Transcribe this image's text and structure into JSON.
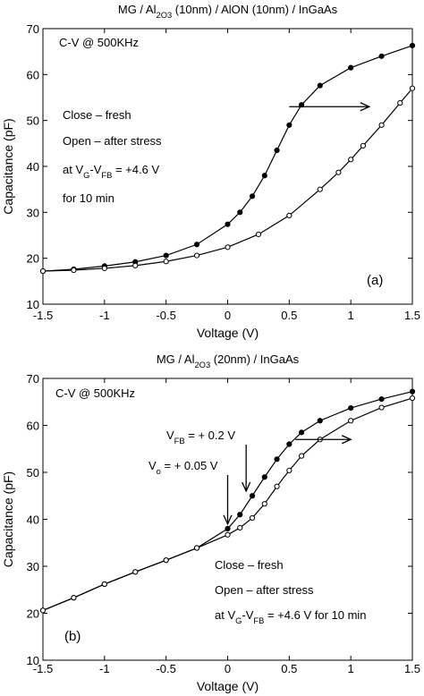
{
  "colors": {
    "axis": "#000000",
    "line": "#000000",
    "closed_marker": "#000000",
    "open_marker": "#ffffff"
  },
  "chart_data": [
    {
      "panel_label": "(a)",
      "type": "line",
      "title": {
        "parts": [
          "MG / Al",
          "2",
          "O",
          "3",
          " (10nm) / AlON (10nm) / InGaAs"
        ]
      },
      "xlabel": "Voltage (V)",
      "ylabel": "Capacitance (pF)",
      "xlim": [
        -1.5,
        1.5
      ],
      "ylim": [
        10,
        70
      ],
      "xticks": [
        -1.5,
        -1,
        -0.5,
        0,
        0.5,
        1,
        1.5
      ],
      "xtick_labels": [
        "-1.5",
        "-1",
        "-0.5",
        "0",
        "0.5",
        "1",
        "1.5"
      ],
      "yticks": [
        10,
        20,
        30,
        40,
        50,
        60,
        70
      ],
      "ytick_labels": [
        "10",
        "20",
        "30",
        "40",
        "50",
        "60",
        "70"
      ],
      "grid": false,
      "annotation_lines": [
        {
          "parts": [
            "C-V @  500KHz"
          ]
        },
        {
          "parts": [
            "Close – fresh"
          ]
        },
        {
          "parts": [
            "Open – after stress"
          ]
        },
        {
          "parts": [
            "at  V",
            "G",
            "-V",
            "FB",
            " = +4.6 V"
          ]
        },
        {
          "parts": [
            "for  10 min"
          ]
        }
      ],
      "arrows": [
        {
          "from": [
            0.5,
            53
          ],
          "to": [
            1.15,
            53
          ]
        }
      ],
      "series": [
        {
          "marker": "closed",
          "x": [
            -1.5,
            -1.25,
            -1.0,
            -0.75,
            -0.5,
            -0.25,
            0.0,
            0.1,
            0.2,
            0.3,
            0.4,
            0.5,
            0.6,
            0.75,
            1.0,
            1.25,
            1.5
          ],
          "y": [
            17.2,
            17.6,
            18.3,
            19.2,
            20.6,
            23.0,
            27.4,
            30.0,
            33.5,
            38.0,
            43.5,
            49.0,
            53.4,
            57.6,
            61.5,
            64.0,
            66.3
          ]
        },
        {
          "marker": "open",
          "x": [
            -1.5,
            -1.25,
            -1.0,
            -0.75,
            -0.5,
            -0.25,
            0.0,
            0.25,
            0.5,
            0.75,
            0.9,
            1.0,
            1.1,
            1.25,
            1.4,
            1.5
          ],
          "y": [
            17.2,
            17.4,
            17.8,
            18.4,
            19.3,
            20.6,
            22.4,
            25.2,
            29.3,
            35.0,
            38.7,
            41.5,
            44.5,
            49.0,
            53.8,
            57.0
          ]
        }
      ]
    },
    {
      "panel_label": "(b)",
      "type": "line",
      "title": {
        "parts": [
          "MG / Al",
          "2",
          "O",
          "3",
          " (20nm) / InGaAs"
        ]
      },
      "xlabel": "Voltage (V)",
      "ylabel": "Capacitance (pF)",
      "xlim": [
        -1.5,
        1.5
      ],
      "ylim": [
        10,
        70
      ],
      "xticks": [
        -1.5,
        -1,
        -0.5,
        0,
        0.5,
        1,
        1.5
      ],
      "xtick_labels": [
        "-1.5",
        "-1",
        "-0.5",
        "0",
        "0.5",
        "1",
        "1.5"
      ],
      "yticks": [
        10,
        20,
        30,
        40,
        50,
        60,
        70
      ],
      "ytick_labels": [
        "10",
        "20",
        "30",
        "40",
        "50",
        "60",
        "70"
      ],
      "grid": false,
      "annotation_lines": [
        {
          "parts": [
            "C-V @  500KHz"
          ]
        },
        {
          "parts": [
            "Close – fresh"
          ]
        },
        {
          "parts": [
            "Open – after stress"
          ]
        },
        {
          "parts": [
            "at  V",
            "G",
            "-V",
            "FB",
            " = +4.6 V  for  10 min"
          ]
        }
      ],
      "callouts": [
        {
          "parts": [
            "V",
            "FB",
            " = + 0.2 V"
          ],
          "point": [
            0.15,
            46
          ]
        },
        {
          "parts": [
            "V",
            "o",
            " = + 0.05 V"
          ],
          "point": [
            0.0,
            39
          ]
        }
      ],
      "arrows": [
        {
          "from": [
            0.55,
            57
          ],
          "to": [
            1.0,
            57
          ]
        }
      ],
      "series": [
        {
          "marker": "closed",
          "x": [
            -1.5,
            -1.25,
            -1.0,
            -0.75,
            -0.5,
            -0.25,
            0.0,
            0.1,
            0.2,
            0.3,
            0.4,
            0.5,
            0.6,
            0.75,
            1.0,
            1.25,
            1.5
          ],
          "y": [
            20.6,
            23.3,
            26.2,
            28.8,
            31.3,
            33.9,
            38.0,
            41.0,
            45.0,
            49.0,
            52.8,
            56.0,
            58.5,
            61.0,
            63.7,
            65.6,
            67.2
          ]
        },
        {
          "marker": "open",
          "x": [
            -1.5,
            -1.25,
            -1.0,
            -0.75,
            -0.5,
            -0.25,
            0.0,
            0.1,
            0.2,
            0.3,
            0.4,
            0.5,
            0.6,
            0.75,
            1.0,
            1.25,
            1.5
          ],
          "y": [
            20.6,
            23.3,
            26.2,
            28.8,
            31.3,
            33.9,
            36.7,
            38.2,
            40.3,
            43.3,
            47.0,
            50.4,
            53.5,
            57.0,
            61.0,
            63.8,
            65.8
          ]
        }
      ]
    }
  ]
}
